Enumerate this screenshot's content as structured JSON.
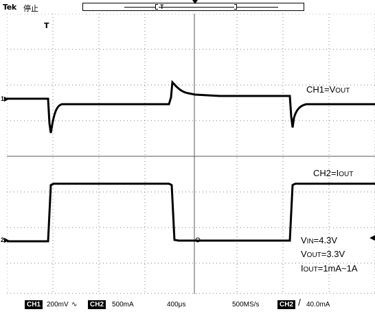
{
  "header": {
    "brand": "Tek",
    "status": "停止",
    "record_marker": "T",
    "trigger_label": "T"
  },
  "channels": {
    "ch1_marker": "1▶",
    "ch2_marker": "2▶"
  },
  "annotations": {
    "ch1_label_main": "CH1=V",
    "ch1_label_sub": "OUT",
    "ch2_label_main": "CH2=I",
    "ch2_label_sub": "OUT",
    "vin_main": "V",
    "vin_sub": "IN",
    "vin_val": "=4.3V",
    "vout_main": "V",
    "vout_sub": "OUT",
    "vout_val": "=3.3V",
    "iout_main": "I",
    "iout_sub": "OUT",
    "iout_val": "=1mA~1A"
  },
  "footer": {
    "ch1_chip": "CH1",
    "ch1_scale": "200mV",
    "ch1_coupling": "∿",
    "ch2_chip": "CH2",
    "ch2_scale": "500mA",
    "timebase": "400μs",
    "sample_rate": "500MS/s",
    "trig_chip": "CH2",
    "trig_slope": "/",
    "trig_level": "40.0mA"
  },
  "colors": {
    "trace": "#000000",
    "grid": "#7a7a7a",
    "background": "#ffffff"
  }
}
